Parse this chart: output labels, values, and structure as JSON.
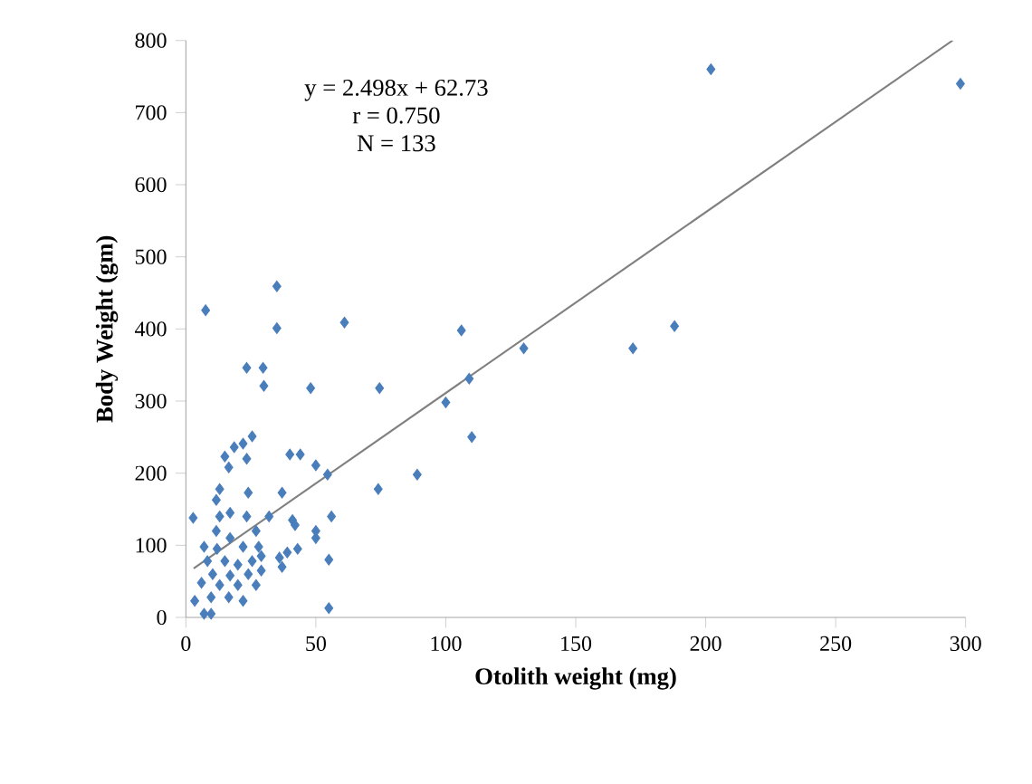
{
  "chart_data": {
    "type": "scatter",
    "xlabel": "Otolith weight (mg)",
    "ylabel": "Body Weight (gm)",
    "annotations": [
      "y = 2.498x + 62.73",
      "r = 0.750",
      "N = 133"
    ],
    "xlim": [
      0,
      300
    ],
    "ylim": [
      0,
      800
    ],
    "xticks": [
      0,
      50,
      100,
      150,
      200,
      250,
      300
    ],
    "yticks": [
      0,
      100,
      200,
      300,
      400,
      500,
      600,
      700,
      800
    ],
    "series": [
      {
        "marker": "diamond",
        "color": "#4a7ebb",
        "x": [
          202,
          298,
          61,
          106,
          130,
          172,
          188,
          74.5,
          109,
          100,
          110,
          89,
          74,
          54.5,
          56,
          55,
          55,
          35,
          7.6,
          35,
          23.4,
          29.7,
          30,
          48,
          25.5,
          22,
          18.6,
          15,
          23.4,
          16.5,
          40,
          44,
          50,
          13,
          11.7,
          24,
          37,
          2.8,
          13,
          17,
          23.4,
          32,
          41,
          42,
          11.7,
          17,
          27,
          7,
          12,
          22,
          28,
          50,
          50,
          43,
          39,
          36,
          37,
          8.3,
          15,
          20,
          25.5,
          29,
          10.3,
          17,
          24,
          29,
          6,
          13,
          20,
          27,
          9.7,
          16.5,
          22,
          3.4,
          7,
          9.7
        ],
        "values": [
          760,
          740,
          409,
          398,
          373,
          373,
          404,
          318,
          331,
          298,
          250,
          198,
          178,
          198,
          140,
          80,
          13,
          459,
          426,
          401,
          346,
          346,
          321,
          318,
          251,
          241,
          236,
          223,
          220,
          208,
          226,
          226,
          211,
          178,
          163,
          173,
          173,
          138,
          140,
          145,
          140,
          140,
          135,
          128,
          120,
          110,
          120,
          98,
          95,
          98,
          98,
          120,
          110,
          95,
          90,
          83,
          70,
          78,
          78,
          73,
          78,
          85,
          60,
          58,
          60,
          65,
          48,
          45,
          45,
          45,
          28,
          28,
          23,
          23,
          5,
          5
        ]
      },
      {
        "type": "line",
        "marker": "none",
        "color": "#808080",
        "x": [
          3,
          295
        ],
        "values": [
          68,
          800
        ]
      }
    ]
  }
}
